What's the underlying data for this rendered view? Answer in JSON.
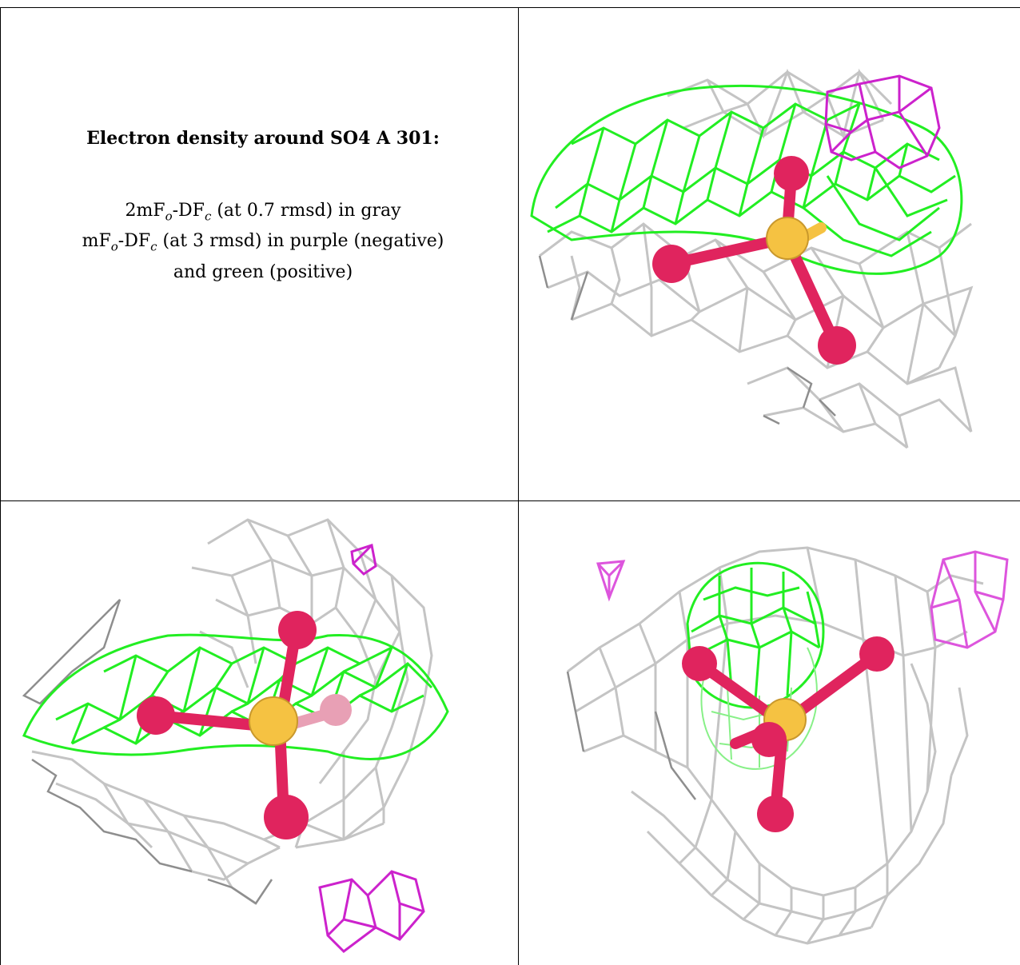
{
  "caption": {
    "title": "Electron density around SO4 A 301:",
    "line1_main": "2mF",
    "line1_sub_o": "o",
    "line1_mid": "-DF",
    "line1_sub_c": "c",
    "line1_rest": " (at 0.7 rmsd) in gray",
    "line2_main": "mF",
    "line2_sub_o": "o",
    "line2_mid": "-DF",
    "line2_sub_c": "c",
    "line2_rest": " (at 3 rmsd) in purple (negative)",
    "line3": "and green (positive)"
  },
  "colors": {
    "gray_mesh": "#c4c4c4",
    "gray_mesh_dark": "#8e8e8e",
    "green_mesh": "#22ee22",
    "purple_mesh": "#cc22cc",
    "oxygen": "#e0245e",
    "sulfur": "#f5c242"
  },
  "panels": [
    {
      "name": "view-1",
      "has_negative": true,
      "has_positive": true
    },
    {
      "name": "view-2",
      "has_negative": true,
      "has_positive": true
    },
    {
      "name": "view-3",
      "has_negative": true,
      "has_positive": true
    }
  ]
}
